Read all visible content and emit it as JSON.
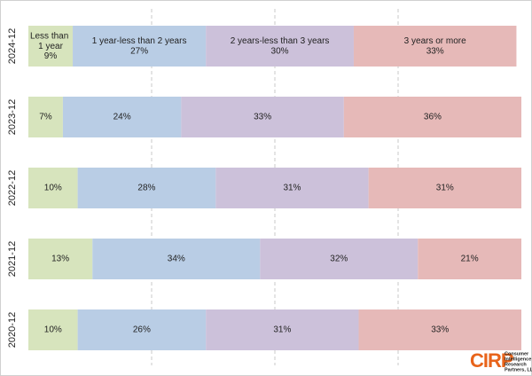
{
  "chart_data": {
    "type": "stacked-bar-horizontal",
    "categories": [
      "2024-12",
      "2023-12",
      "2022-12",
      "2021-12",
      "2020-12"
    ],
    "series": [
      {
        "name": "Less than 1 year",
        "color": "#d7e4bd",
        "values": [
          9,
          7,
          10,
          13,
          10
        ],
        "value_labels": [
          "9%",
          "7%",
          "10%",
          "13%",
          "10%"
        ]
      },
      {
        "name": "1 year-less than 2 years",
        "color": "#b9cde5",
        "values": [
          27,
          24,
          28,
          34,
          26
        ],
        "value_labels": [
          "27%",
          "24%",
          "28%",
          "34%",
          "26%"
        ]
      },
      {
        "name": "2 years-less than 3 years",
        "color": "#ccc1da",
        "values": [
          30,
          33,
          31,
          32,
          31
        ],
        "value_labels": [
          "30%",
          "33%",
          "31%",
          "32%",
          "31%"
        ]
      },
      {
        "name": "3 years or more",
        "color": "#e6b9b8",
        "values": [
          33,
          36,
          31,
          21,
          33
        ],
        "value_labels": [
          "33%",
          "36%",
          "31%",
          "21%",
          "33%"
        ]
      }
    ],
    "xlim": [
      0,
      100
    ],
    "xticks": [
      25,
      50,
      75
    ],
    "show_tick_labels": false,
    "grid": true,
    "legend": "inside-first-bar",
    "logo": "CIRP",
    "logo_lines": [
      "Consumer",
      "Intelligence",
      "Research",
      "Partners, LLC"
    ]
  }
}
